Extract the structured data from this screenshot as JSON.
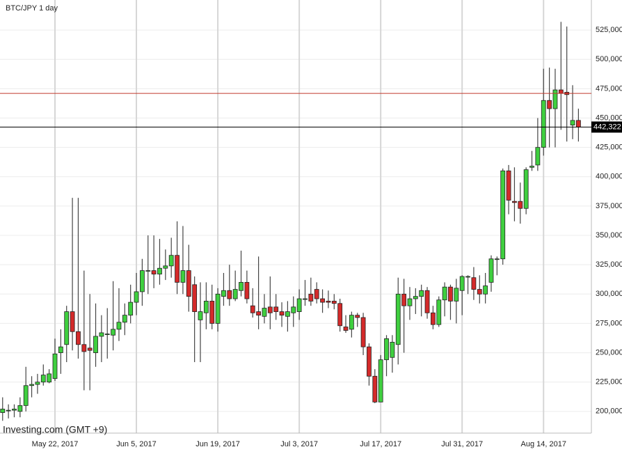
{
  "chart_data": {
    "type": "candlestick",
    "title": "BTC/JPY 1 day",
    "watermark": "Investing.com (GMT +9)",
    "x": [
      "2017-05-13",
      "2017-05-14",
      "2017-05-15",
      "2017-05-16",
      "2017-05-17",
      "2017-05-18",
      "2017-05-19",
      "2017-05-20",
      "2017-05-21",
      "2017-05-22",
      "2017-05-23",
      "2017-05-24",
      "2017-05-25",
      "2017-05-26",
      "2017-05-27",
      "2017-05-28",
      "2017-05-29",
      "2017-05-30",
      "2017-05-31",
      "2017-06-01",
      "2017-06-02",
      "2017-06-03",
      "2017-06-04",
      "2017-06-05",
      "2017-06-06",
      "2017-06-07",
      "2017-06-08",
      "2017-06-09",
      "2017-06-10",
      "2017-06-11",
      "2017-06-12",
      "2017-06-13",
      "2017-06-14",
      "2017-06-15",
      "2017-06-16",
      "2017-06-17",
      "2017-06-18",
      "2017-06-19",
      "2017-06-20",
      "2017-06-21",
      "2017-06-22",
      "2017-06-23",
      "2017-06-24",
      "2017-06-25",
      "2017-06-26",
      "2017-06-27",
      "2017-06-28",
      "2017-06-29",
      "2017-06-30",
      "2017-07-01",
      "2017-07-02",
      "2017-07-03",
      "2017-07-04",
      "2017-07-05",
      "2017-07-06",
      "2017-07-07",
      "2017-07-08",
      "2017-07-09",
      "2017-07-10",
      "2017-07-11",
      "2017-07-12",
      "2017-07-13",
      "2017-07-14",
      "2017-07-15",
      "2017-07-16",
      "2017-07-17",
      "2017-07-18",
      "2017-07-19",
      "2017-07-20",
      "2017-07-21",
      "2017-07-22",
      "2017-07-23",
      "2017-07-24",
      "2017-07-25",
      "2017-07-26",
      "2017-07-27",
      "2017-07-28",
      "2017-07-29",
      "2017-07-30",
      "2017-07-31",
      "2017-08-01",
      "2017-08-02",
      "2017-08-03",
      "2017-08-04",
      "2017-08-05",
      "2017-08-06",
      "2017-08-07",
      "2017-08-08",
      "2017-08-09",
      "2017-08-10",
      "2017-08-11",
      "2017-08-12",
      "2017-08-13",
      "2017-08-14",
      "2017-08-15",
      "2017-08-16",
      "2017-08-17",
      "2017-08-18",
      "2017-08-19",
      "2017-08-20"
    ],
    "open": [
      199000,
      201000,
      201000,
      200000,
      205000,
      222000,
      223000,
      225000,
      225000,
      228000,
      250000,
      257000,
      285000,
      268000,
      257000,
      254000,
      250000,
      264000,
      266000,
      265000,
      270000,
      276000,
      282000,
      293000,
      302000,
      320000,
      320000,
      317000,
      322000,
      324000,
      333000,
      310000,
      320000,
      308000,
      278000,
      284000,
      294000,
      275000,
      298000,
      303000,
      296000,
      303000,
      310000,
      290000,
      285000,
      281000,
      289000,
      289000,
      285000,
      281000,
      284000,
      285000,
      296000,
      300000,
      304000,
      296000,
      294000,
      294000,
      292000,
      272000,
      270000,
      282000,
      280000,
      255000,
      230000,
      208000,
      244000,
      246000,
      257000,
      300000,
      290000,
      296000,
      298000,
      303000,
      284000,
      274000,
      295000,
      306000,
      294000,
      303000,
      315000,
      314000,
      304000,
      300000,
      310000,
      330000,
      330000,
      405000,
      379000,
      379000,
      373000,
      408000,
      410000,
      425000,
      465000,
      458000,
      474000,
      472000,
      444000,
      448000
    ],
    "high": [
      212000,
      206000,
      206000,
      212000,
      238000,
      230000,
      232000,
      240000,
      236000,
      262000,
      270000,
      290000,
      382000,
      382000,
      320000,
      300000,
      292000,
      282000,
      288000,
      311000,
      305000,
      292000,
      308000,
      318000,
      330000,
      350000,
      350000,
      347000,
      338000,
      348000,
      362000,
      358000,
      342000,
      315000,
      310000,
      310000,
      308000,
      305000,
      318000,
      325000,
      320000,
      337000,
      320000,
      305000,
      332000,
      300000,
      315000,
      300000,
      293000,
      294000,
      298000,
      304000,
      312000,
      314000,
      310000,
      304000,
      303000,
      300000,
      296000,
      282000,
      285000,
      284000,
      284000,
      258000,
      236000,
      248000,
      265000,
      265000,
      314000,
      313000,
      306000,
      305000,
      308000,
      306000,
      290000,
      298000,
      310000,
      308000,
      313000,
      316000,
      316000,
      323000,
      316000,
      318000,
      333000,
      332000,
      407000,
      410000,
      408000,
      395000,
      408000,
      422000,
      450000,
      492000,
      493000,
      492000,
      532000,
      528000,
      478000,
      458000
    ],
    "low": [
      192000,
      194000,
      195000,
      195000,
      200000,
      212000,
      215000,
      222000,
      224000,
      226000,
      232000,
      242000,
      252000,
      245000,
      218000,
      218000,
      238000,
      242000,
      245000,
      252000,
      260000,
      265000,
      275000,
      282000,
      290000,
      300000,
      305000,
      308000,
      312000,
      314000,
      300000,
      300000,
      285000,
      242000,
      242000,
      270000,
      270000,
      268000,
      290000,
      290000,
      294000,
      298000,
      292000,
      280000,
      270000,
      275000,
      270000,
      278000,
      272000,
      268000,
      272000,
      278000,
      290000,
      290000,
      292000,
      284000,
      288000,
      287000,
      268000,
      267000,
      263000,
      272000,
      248000,
      222000,
      207000,
      208000,
      230000,
      233000,
      240000,
      250000,
      278000,
      283000,
      281000,
      279000,
      270000,
      272000,
      281000,
      278000,
      275000,
      282000,
      300000,
      295000,
      292000,
      292000,
      302000,
      316000,
      325000,
      368000,
      362000,
      360000,
      368000,
      405000,
      405000,
      418000,
      425000,
      425000,
      440000,
      430000,
      432000,
      430000
    ],
    "close": [
      202000,
      201000,
      202000,
      205000,
      222000,
      223000,
      225000,
      231000,
      232000,
      249000,
      255000,
      285000,
      268000,
      257000,
      251000,
      252000,
      264000,
      267000,
      266000,
      270000,
      276000,
      282000,
      293000,
      302000,
      320000,
      320000,
      317000,
      322000,
      324000,
      333000,
      310000,
      320000,
      298000,
      285000,
      285000,
      294000,
      275000,
      300000,
      303000,
      296000,
      304000,
      310000,
      296000,
      284000,
      282000,
      288000,
      284000,
      285000,
      282000,
      285000,
      289000,
      296000,
      296000,
      294000,
      296000,
      293000,
      293000,
      292000,
      273000,
      269000,
      282000,
      280000,
      255000,
      230000,
      208000,
      244000,
      262000,
      259000,
      300000,
      290000,
      296000,
      298000,
      303000,
      284000,
      274000,
      295000,
      306000,
      294000,
      305000,
      315000,
      315000,
      304000,
      300000,
      307000,
      330000,
      330000,
      405000,
      380000,
      378000,
      373000,
      406000,
      409000,
      425000,
      465000,
      458000,
      474000,
      471000,
      470000,
      448000,
      442322
    ],
    "up_color": "#3fcf3f",
    "down_color": "#d42a2a",
    "last_price": {
      "value": 442322,
      "label": "442,322"
    },
    "reference_line": {
      "value": 471000,
      "color": "#c0392b"
    },
    "ylim": [
      181500,
      550600
    ],
    "yticks": [
      {
        "value": 200000,
        "label": "200,000"
      },
      {
        "value": 225000,
        "label": "225,000"
      },
      {
        "value": 250000,
        "label": "250,000"
      },
      {
        "value": 275000,
        "label": "275,000"
      },
      {
        "value": 300000,
        "label": "300,000"
      },
      {
        "value": 325000,
        "label": "325,000"
      },
      {
        "value": 350000,
        "label": "350,000"
      },
      {
        "value": 375000,
        "label": "375,000"
      },
      {
        "value": 400000,
        "label": "400,000"
      },
      {
        "value": 425000,
        "label": "425,000"
      },
      {
        "value": 450000,
        "label": "450,000"
      },
      {
        "value": 475000,
        "label": "475,000"
      },
      {
        "value": 500000,
        "label": "500,000"
      },
      {
        "value": 525000,
        "label": "525,000"
      }
    ],
    "xticks": [
      {
        "value": "2017-05-22",
        "label": "May 22, 2017"
      },
      {
        "value": "2017-06-05",
        "label": "Jun 5, 2017"
      },
      {
        "value": "2017-06-19",
        "label": "Jun 19, 2017"
      },
      {
        "value": "2017-07-03",
        "label": "Jul 3, 2017"
      },
      {
        "value": "2017-07-17",
        "label": "Jul 17, 2017"
      },
      {
        "value": "2017-07-31",
        "label": "Jul 31, 2017"
      },
      {
        "value": "2017-08-14",
        "label": "Aug 14, 2017"
      }
    ],
    "grid": true
  }
}
